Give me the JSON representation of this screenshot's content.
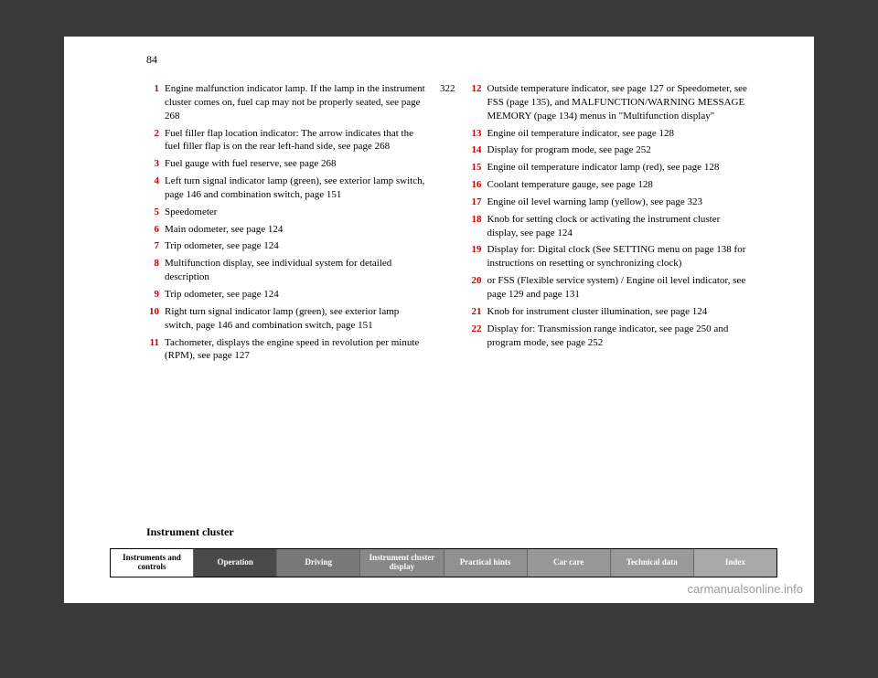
{
  "page_number": "84",
  "section_title": "Instrument cluster",
  "watermark": "carmanualsonline.info",
  "left_column": [
    {
      "num": "1",
      "text": "Engine malfunction indicator lamp. If the lamp in the instrument cluster comes on, fuel cap may not be properly seated, see page 268",
      "page": "322"
    },
    {
      "num": "2",
      "text": "Fuel filler flap location indicator: The arrow indicates that the fuel filler flap is on the rear left-hand side, see page 268",
      "page": ""
    },
    {
      "num": "3",
      "text": "Fuel gauge with fuel reserve, see page 268",
      "page": ""
    },
    {
      "num": "4",
      "text": "Left turn signal indicator lamp (green), see exterior lamp switch, page 146 and combination switch, page 151",
      "page": ""
    },
    {
      "num": "5",
      "text": "Speedometer",
      "page": ""
    },
    {
      "num": "6",
      "text": "Main odometer, see page 124",
      "page": ""
    },
    {
      "num": "7",
      "text": "Trip odometer, see page 124",
      "page": ""
    },
    {
      "num": "8",
      "text": "Multifunction display, see individual system for detailed description",
      "page": ""
    },
    {
      "num": "9",
      "text": "Trip odometer, see page 124",
      "page": ""
    },
    {
      "num": "10",
      "text": "Right turn signal indicator lamp (green), see exterior lamp switch, page 146 and combination switch, page 151",
      "page": ""
    },
    {
      "num": "11",
      "text": "Tachometer, displays the engine speed in revolution per minute (RPM), see page 127",
      "page": ""
    }
  ],
  "right_column": [
    {
      "num": "12",
      "text": "Outside temperature indicator, see page 127 or Speedometer, see FSS (page 135), and MALFUNCTION/WARNING MESSAGE MEMORY (page 134) menus in \"Multifunction display\"",
      "page": ""
    },
    {
      "num": "13",
      "text": "Engine oil temperature indicator, see page 128",
      "page": ""
    },
    {
      "num": "14",
      "text": "Display for program mode, see page 252",
      "page": ""
    },
    {
      "num": "15",
      "text": "Engine oil temperature indicator lamp (red), see page 128",
      "page": ""
    },
    {
      "num": "16",
      "text": "Coolant temperature gauge, see page 128",
      "page": ""
    },
    {
      "num": "17",
      "text": "Engine oil level warning lamp (yellow), see page 323",
      "page": ""
    },
    {
      "num": "18",
      "text": "Knob for setting clock or activating the instrument cluster display, see page 124",
      "page": ""
    },
    {
      "num": "19",
      "text": "Display for: Digital clock (See SETTING menu on page 138 for instructions on resetting or synchronizing clock)",
      "page": ""
    },
    {
      "num": "20",
      "text": "or FSS (Flexible service system) / Engine oil level indicator, see page 129 and page 131",
      "page": ""
    },
    {
      "num": "21",
      "text": "Knob for instrument cluster illumination, see page 124",
      "page": ""
    },
    {
      "num": "22",
      "text": "Display for: Transmission range indicator, see page 250 and program mode, see page 252",
      "page": ""
    }
  ],
  "tabs": [
    {
      "label": "Instruments and controls",
      "style": "tab-white"
    },
    {
      "label": "Operation",
      "style": "tab-dark"
    },
    {
      "label": "Driving",
      "style": "tab-gray1"
    },
    {
      "label": "Instrument cluster display",
      "style": "tab-gray2"
    },
    {
      "label": "Practical hints",
      "style": "tab-gray3"
    },
    {
      "label": "Car care",
      "style": "tab-gray4"
    },
    {
      "label": "Technical data",
      "style": "tab-gray5"
    },
    {
      "label": "Index",
      "style": "tab-gray6"
    }
  ]
}
